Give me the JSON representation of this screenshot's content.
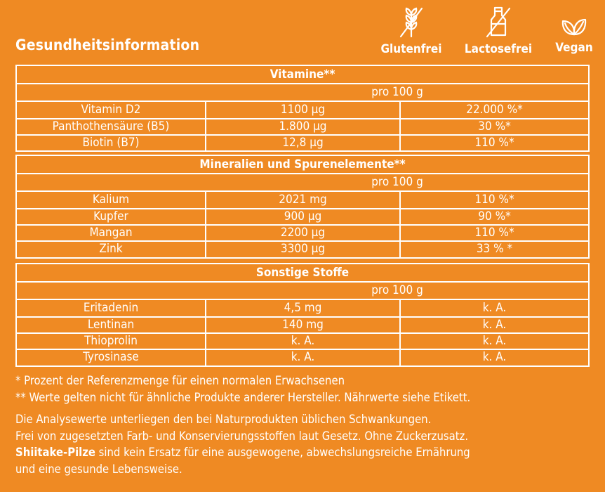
{
  "page_title": "Gesundheitsinformation",
  "badges": [
    {
      "label": "Glutenfrei",
      "icon": "wheat-crossed-icon"
    },
    {
      "label": "Lactosefrei",
      "icon": "bottle-crossed-icon"
    },
    {
      "label": "Vegan",
      "icon": "leaves-icon"
    }
  ],
  "colors": {
    "background": "#ef8a23",
    "foreground": "#ffffff"
  },
  "sections": [
    {
      "title": "Vitamine**",
      "per": "pro 100 g",
      "rows": [
        {
          "name": "Vitamin D2",
          "amount": "1100 µg",
          "ref": "22.000 %*"
        },
        {
          "name": "Panthothensäure (B5)",
          "amount": "1.800 µg",
          "ref": "30 %*"
        },
        {
          "name": "Biotin (B7)",
          "amount": "12,8 µg",
          "ref": "110 %*"
        }
      ]
    },
    {
      "title": "Mineralien und Spurenelemente**",
      "per": "pro 100 g",
      "rows": [
        {
          "name": "Kalium",
          "amount": "2021 mg",
          "ref": "110 %*"
        },
        {
          "name": "Kupfer",
          "amount": "900 µg",
          "ref": "90 %*"
        },
        {
          "name": "Mangan",
          "amount": "2200 µg",
          "ref": "110 %*"
        },
        {
          "name": "Zink",
          "amount": "3300 µg",
          "ref": "33 % *"
        }
      ]
    },
    {
      "title": "Sonstige Stoffe",
      "per": "pro 100 g",
      "rows": [
        {
          "name": "Eritadenin",
          "amount": "4,5 mg",
          "ref": "k. A."
        },
        {
          "name": "Lentinan",
          "amount": "140 mg",
          "ref": "k. A."
        },
        {
          "name": "Thioprolin",
          "amount": "k. A.",
          "ref": "k. A."
        },
        {
          "name": "Tyrosinase",
          "amount": "k. A.",
          "ref": "k. A."
        }
      ]
    }
  ],
  "footnotes": {
    "note1": "* Prozent der Referenzmenge für einen normalen Erwachsenen",
    "note2": "** Werte gelten nicht für ähnliche Produkte anderer Hersteller. Nährwerte siehe Etikett.",
    "text1": "Die Analysewerte unterliegen den bei Naturprodukten üblichen Schwankungen.",
    "text2": "Frei von zugesetzten Farb- und Konservierungsstoffen laut Gesetz. Ohne Zuckerzusatz.",
    "text3_bold": "Shiitake-Pilze",
    "text3_rest": " sind kein Ersatz für eine ausgewogene, abwechslungsreiche Ernährung",
    "text4": "und eine gesunde Lebensweise."
  }
}
